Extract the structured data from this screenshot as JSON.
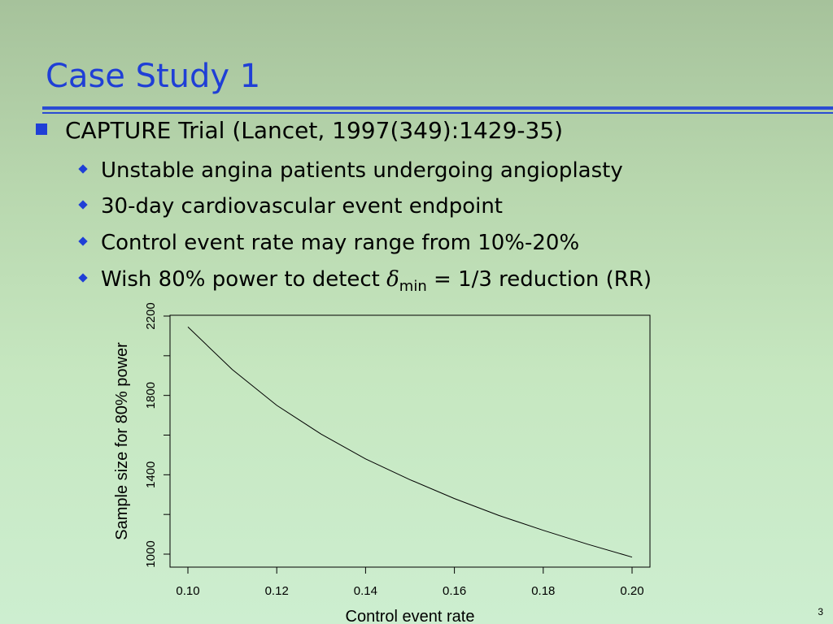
{
  "slide": {
    "title": "Case Study 1",
    "bullet_main": "CAPTURE Trial (Lancet, 1997(349):1429-35)",
    "sub_bullets": [
      "Unstable angina patients undergoing angioplasty",
      "30-day cardiovascular event endpoint",
      "Control event rate may range from 10%-20%"
    ],
    "last_bullet": {
      "prefix": "Wish 80% power to detect ",
      "symbol": "δ",
      "subscript": "min",
      "suffix": " = 1/3 reduction (RR)"
    },
    "page_number": "3",
    "accent_color": "#1f3fd6"
  },
  "chart_data": {
    "type": "line",
    "xlabel": "Control event rate",
    "ylabel": "Sample size for 80% power",
    "xlim": [
      0.1,
      0.2
    ],
    "ylim": [
      1000,
      2200
    ],
    "x_ticks": [
      "0.10",
      "0.12",
      "0.14",
      "0.16",
      "0.18",
      "0.20"
    ],
    "y_ticks": [
      "1000",
      "1400",
      "1800",
      "2200"
    ],
    "y_minor_ticks": [
      1200,
      1600,
      2000
    ],
    "grid": false,
    "x": [
      0.1,
      0.11,
      0.12,
      0.13,
      0.14,
      0.15,
      0.16,
      0.17,
      0.18,
      0.19,
      0.2
    ],
    "y": [
      2145,
      1930,
      1750,
      1605,
      1480,
      1375,
      1280,
      1195,
      1120,
      1050,
      985
    ]
  }
}
